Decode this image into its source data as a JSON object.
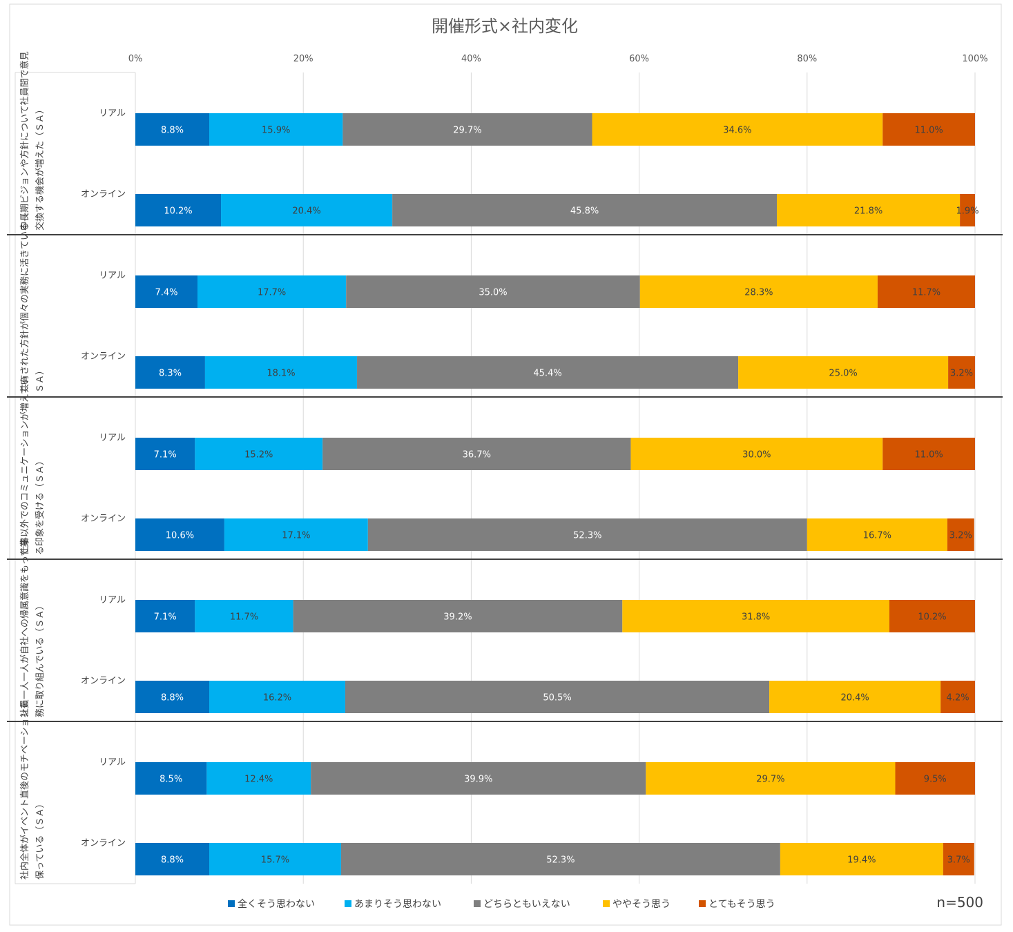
{
  "chart_data": {
    "type": "bar",
    "orientation": "horizontal",
    "stacked": "percent",
    "title": "開催形式×社内変化",
    "sample_size": "n=500",
    "x_ticks": [
      "0%",
      "20%",
      "40%",
      "60%",
      "80%",
      "100%"
    ],
    "xlim": [
      0,
      100
    ],
    "legend_position": "bottom",
    "series": [
      {
        "name": "全くそう思わない",
        "color": "#0070C0"
      },
      {
        "name": "あまりそう思わない",
        "color": "#00B0F0"
      },
      {
        "name": "どちらともいえない",
        "color": "#7F7F7F"
      },
      {
        "name": "ややそう思う",
        "color": "#FFC000"
      },
      {
        "name": "とてもそう思う",
        "color": "#D35400"
      }
    ],
    "groups": [
      {
        "label": "中長期ビジョンや方針について社員間で意見交換する機会が増えた（ＳＡ）",
        "rows": [
          {
            "category": "リアル",
            "values": [
              8.8,
              15.9,
              29.7,
              34.6,
              11.0
            ],
            "labels": [
              "8.8%",
              "15.9%",
              "29.7%",
              "34.6%",
              "11.0%"
            ]
          },
          {
            "category": "オンライン",
            "values": [
              10.2,
              20.4,
              45.8,
              21.8,
              1.9
            ],
            "labels": [
              "10.2%",
              "20.4%",
              "45.8%",
              "21.8%",
              "1.9%"
            ]
          }
        ]
      },
      {
        "label": "共有された方針が個々の実務に活きている（ＳＡ）",
        "rows": [
          {
            "category": "リアル",
            "values": [
              7.4,
              17.7,
              35.0,
              28.3,
              11.7
            ],
            "labels": [
              "7.4%",
              "17.7%",
              "35.0%",
              "28.3%",
              "11.7%"
            ]
          },
          {
            "category": "オンライン",
            "values": [
              8.3,
              18.1,
              45.4,
              25.0,
              3.2
            ],
            "labels": [
              "8.3%",
              "18.1%",
              "45.4%",
              "25.0%",
              "3.2%"
            ]
          }
        ]
      },
      {
        "label": "仕事以外でのコミュニケーションが増えている印象を受ける（ＳＡ）",
        "rows": [
          {
            "category": "リアル",
            "values": [
              7.1,
              15.2,
              36.7,
              30.0,
              11.0
            ],
            "labels": [
              "7.1%",
              "15.2%",
              "36.7%",
              "30.0%",
              "11.0%"
            ]
          },
          {
            "category": "オンライン",
            "values": [
              10.6,
              17.1,
              52.3,
              16.7,
              3.2
            ],
            "labels": [
              "10.6%",
              "17.1%",
              "52.3%",
              "16.7%",
              "3.2%"
            ]
          }
        ]
      },
      {
        "label": "社員一人一人が自社への帰属意識をもって業務に取り組んでいる（ＳＡ）",
        "rows": [
          {
            "category": "リアル",
            "values": [
              7.1,
              11.7,
              39.2,
              31.8,
              10.2
            ],
            "labels": [
              "7.1%",
              "11.7%",
              "39.2%",
              "31.8%",
              "10.2%"
            ]
          },
          {
            "category": "オンライン",
            "values": [
              8.8,
              16.2,
              50.5,
              20.4,
              4.2
            ],
            "labels": [
              "8.8%",
              "16.2%",
              "50.5%",
              "20.4%",
              "4.2%"
            ]
          }
        ]
      },
      {
        "label": "社内全体がイベント直後のモチベーションを保っている（ＳＡ）",
        "rows": [
          {
            "category": "リアル",
            "values": [
              8.5,
              12.4,
              39.9,
              29.7,
              9.5
            ],
            "labels": [
              "8.5%",
              "12.4%",
              "39.9%",
              "29.7%",
              "9.5%"
            ]
          },
          {
            "category": "オンライン",
            "values": [
              8.8,
              15.7,
              52.3,
              19.4,
              3.7
            ],
            "labels": [
              "8.8%",
              "15.7%",
              "52.3%",
              "19.4%",
              "3.7%"
            ]
          }
        ]
      }
    ]
  }
}
